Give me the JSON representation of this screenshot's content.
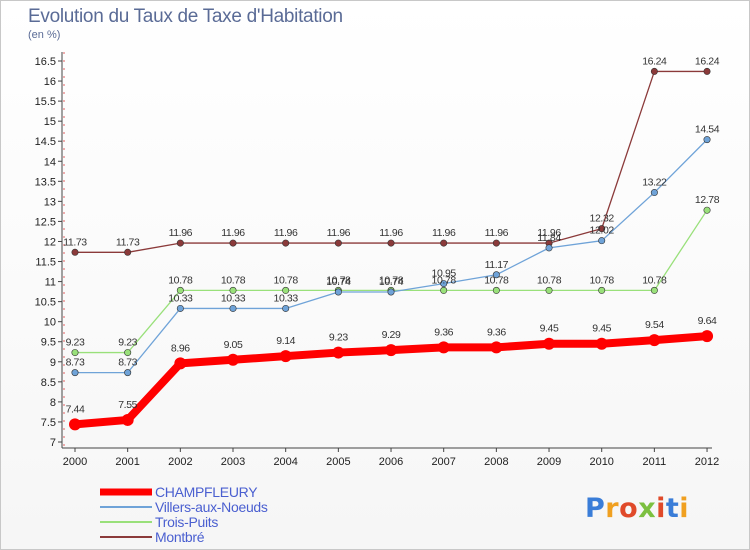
{
  "title": "Evolution du Taux de Taxe d'Habitation",
  "unit_label": "(en %)",
  "logo_text": "Proxiti",
  "chart_data": {
    "type": "line",
    "x": [
      "2000",
      "2001",
      "2002",
      "2003",
      "2004",
      "2005",
      "2006",
      "2007",
      "2008",
      "2009",
      "2010",
      "2011",
      "2012"
    ],
    "ylim": [
      7,
      16.5
    ],
    "yticks": [
      "7",
      "7.5",
      "8",
      "8.5",
      "9",
      "9.5",
      "10",
      "10.5",
      "11",
      "11.5",
      "12",
      "12.5",
      "13",
      "13.5",
      "14",
      "14.5",
      "15",
      "15.5",
      "16",
      "16.5"
    ],
    "grid": false,
    "legend_position": "bottom-left",
    "series": [
      {
        "name": "CHAMPFLEURY",
        "color": "#ff0000",
        "values": [
          7.44,
          7.55,
          8.96,
          9.05,
          9.14,
          9.23,
          9.29,
          9.36,
          9.36,
          9.45,
          9.45,
          9.54,
          9.64
        ],
        "labels": [
          "7.44",
          "7.55",
          "8.96",
          "9.05",
          "9.14",
          "9.23",
          "9.29",
          "9.36",
          "9.36",
          "9.45",
          "9.45",
          "9.54",
          "9.64"
        ]
      },
      {
        "name": "Villers-aux-Noeuds",
        "color": "#6fa3d8",
        "values": [
          8.73,
          8.73,
          10.33,
          10.33,
          10.33,
          10.74,
          10.74,
          10.95,
          11.17,
          11.84,
          12.02,
          13.22,
          14.54
        ],
        "labels": [
          "8.73",
          "8.73",
          "10.33",
          "10.33",
          "10.33",
          "10.74",
          "10.74",
          "10.95",
          "11.17",
          "11.84",
          "12.02",
          "13.22",
          "14.54"
        ]
      },
      {
        "name": "Trois-Puits",
        "color": "#99e07a",
        "values": [
          9.23,
          9.23,
          10.78,
          10.78,
          10.78,
          10.78,
          10.78,
          10.78,
          10.78,
          10.78,
          10.78,
          10.78,
          12.78
        ],
        "labels": [
          "9.23",
          "9.23",
          "10.78",
          "10.78",
          "10.78",
          "10.78",
          "10.78",
          "10.78",
          "10.78",
          "10.78",
          "10.78",
          "10.78",
          "12.78"
        ]
      },
      {
        "name": "Montbré",
        "color": "#8b3a3a",
        "values": [
          11.73,
          11.73,
          11.96,
          11.96,
          11.96,
          11.96,
          11.96,
          11.96,
          11.96,
          11.96,
          12.32,
          16.24,
          16.24
        ],
        "labels": [
          "11.73",
          "11.73",
          "11.96",
          "11.96",
          "11.96",
          "11.96",
          "11.96",
          "11.96",
          "11.96",
          "11.96",
          "12.32",
          "16.24",
          "16.24"
        ]
      }
    ]
  }
}
